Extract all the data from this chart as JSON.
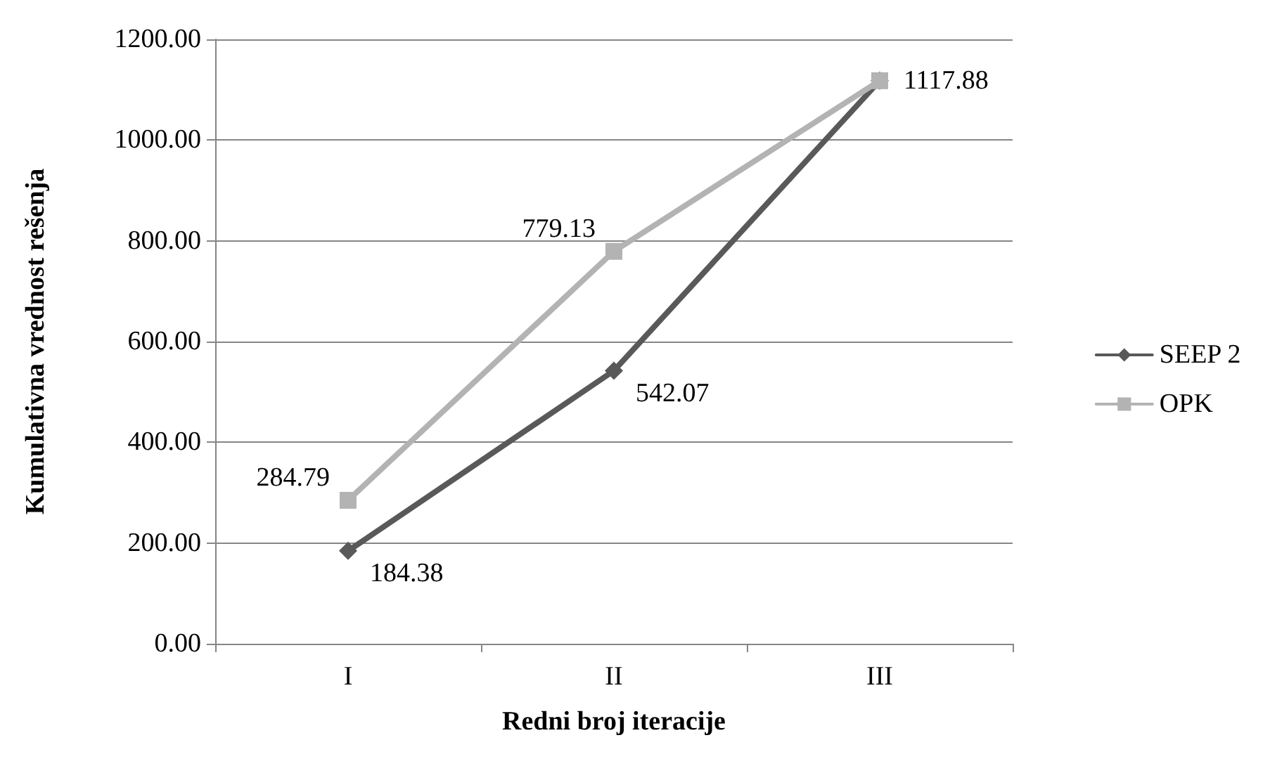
{
  "chart_data": {
    "type": "line",
    "xlabel": "Redni broj iteracije",
    "ylabel": "Kumulativna vrednost rešenja",
    "categories": [
      "I",
      "II",
      "III"
    ],
    "series": [
      {
        "name": "SEEP 2",
        "color": "#595959",
        "marker": "diamond",
        "values": [
          184.38,
          542.07,
          1117.88
        ],
        "value_labels": [
          "184.38",
          "542.07",
          null
        ]
      },
      {
        "name": "OPK",
        "color": "#b3b3b3",
        "marker": "square",
        "values": [
          284.79,
          779.13,
          1117.88
        ],
        "value_labels": [
          "284.79",
          "779.13",
          "1117.88"
        ]
      }
    ],
    "ylim": [
      0,
      1200
    ],
    "yticks": [
      {
        "value": 0,
        "label": "0.00"
      },
      {
        "value": 200,
        "label": "200.00"
      },
      {
        "value": 400,
        "label": "400.00"
      },
      {
        "value": 600,
        "label": "600.00"
      },
      {
        "value": 800,
        "label": "800.00"
      },
      {
        "value": 1000,
        "label": "1000.00"
      },
      {
        "value": 1200,
        "label": "1200.00"
      }
    ],
    "grid": "y",
    "legend": "right"
  }
}
